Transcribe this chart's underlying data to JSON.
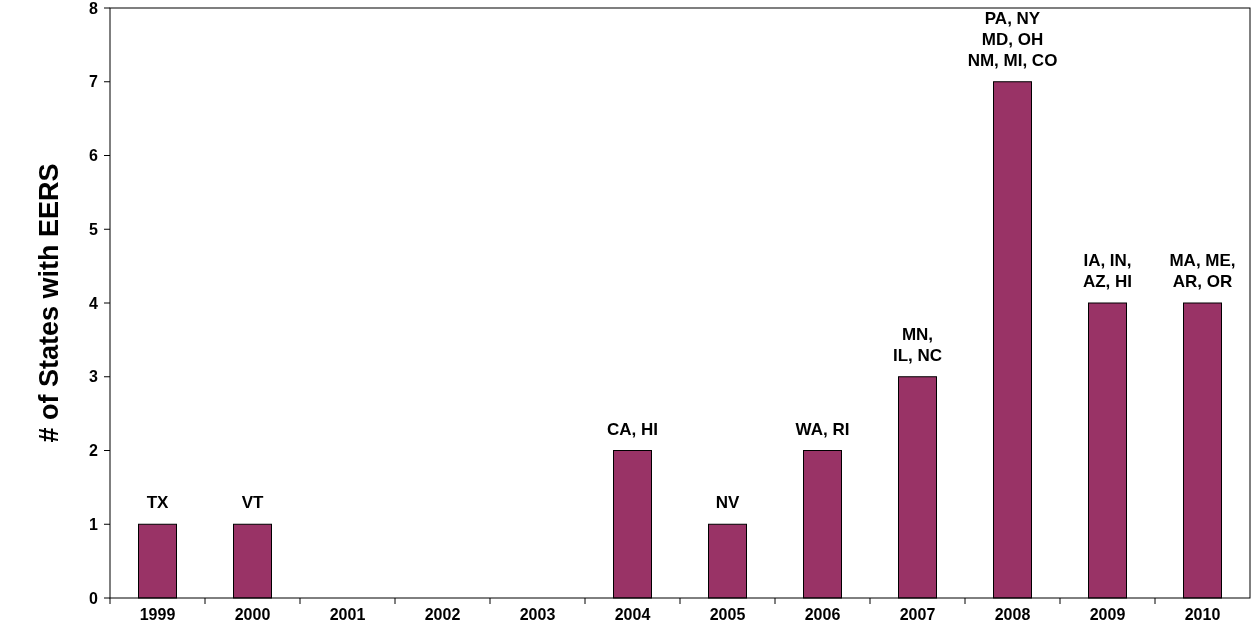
{
  "chart_data": {
    "type": "bar",
    "ylabel": "# of States with EERS",
    "categories": [
      "1999",
      "2000",
      "2001",
      "2002",
      "2003",
      "2004",
      "2005",
      "2006",
      "2007",
      "2008",
      "2009",
      "2010"
    ],
    "values": [
      1,
      1,
      0,
      0,
      0,
      2,
      1,
      2,
      3,
      7,
      4,
      4
    ],
    "value_labels": [
      "TX",
      "VT",
      null,
      null,
      null,
      "CA, HI",
      "NV",
      "WA, RI",
      "MN,\nIL, NC",
      "PA, NY\nMD, OH\nNM, MI, CO",
      "IA, IN,\nAZ, HI",
      "MA, ME,\nAR, OR"
    ],
    "color": "#993366",
    "ylim": [
      0,
      8
    ],
    "yticks": [
      0,
      1,
      2,
      3,
      4,
      5,
      6,
      7,
      8
    ],
    "grid": false
  }
}
